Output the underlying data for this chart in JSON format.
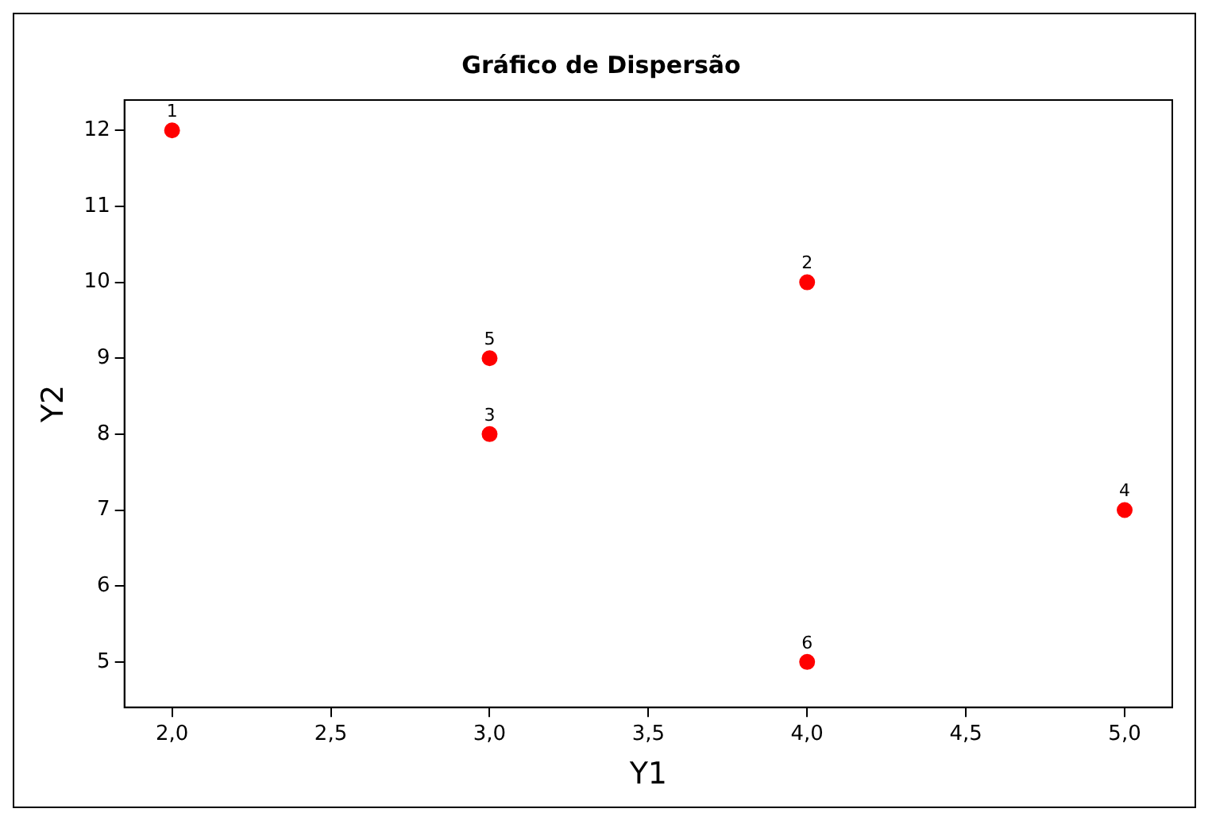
{
  "chart_data": {
    "type": "scatter",
    "title": "Gráfico de Dispersão",
    "xlabel": "Y1",
    "ylabel": "Y2",
    "x": [
      2,
      4,
      3,
      5,
      3,
      4
    ],
    "values": [
      12,
      10,
      8,
      7,
      9,
      5
    ],
    "annotations": [
      {
        "text": "1",
        "x": 2,
        "y": 12
      },
      {
        "text": "2",
        "x": 4,
        "y": 10
      },
      {
        "text": "3",
        "x": 3,
        "y": 8
      },
      {
        "text": "4",
        "x": 5,
        "y": 7
      },
      {
        "text": "5",
        "x": 3,
        "y": 9
      },
      {
        "text": "6",
        "x": 4,
        "y": 5
      }
    ],
    "color": "#ff0000",
    "marker": "circle",
    "grid": false,
    "legend": false,
    "xlim": [
      1.85,
      5.15
    ],
    "ylim": [
      4.4,
      12.4
    ],
    "xticks": [
      {
        "value": 2,
        "label": "2,0"
      },
      {
        "value": 2.5,
        "label": "2,5"
      },
      {
        "value": 3,
        "label": "3,0"
      },
      {
        "value": 3.5,
        "label": "3,5"
      },
      {
        "value": 4,
        "label": "4,0"
      },
      {
        "value": 4.5,
        "label": "4,5"
      },
      {
        "value": 5,
        "label": "5,0"
      }
    ],
    "yticks": [
      5,
      6,
      7,
      8,
      9,
      10,
      11,
      12
    ]
  }
}
